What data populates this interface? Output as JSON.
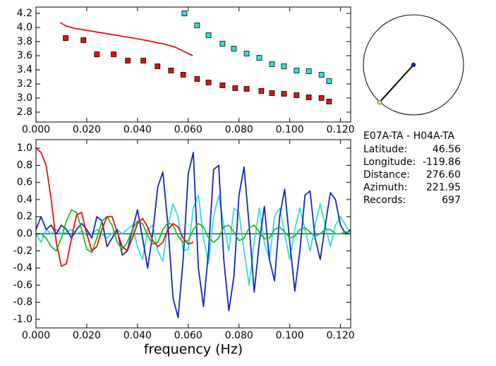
{
  "chart_data": [
    {
      "type": "scatter",
      "xlim": [
        0,
        0.124
      ],
      "ylim": [
        2.66,
        4.29
      ],
      "xticks": [
        {
          "value": 0,
          "label": "0.000"
        },
        {
          "value": 0.02,
          "label": "0.020"
        },
        {
          "value": 0.04,
          "label": "0.040"
        },
        {
          "value": 0.06,
          "label": "0.060"
        },
        {
          "value": 0.08,
          "label": "0.080"
        },
        {
          "value": 0.1,
          "label": "0.100"
        },
        {
          "value": 0.12,
          "label": "0.120"
        }
      ],
      "yticks": [
        2.8,
        {
          "value": 3.0,
          "label": "3.0"
        },
        3.2,
        3.4,
        3.6,
        3.8,
        {
          "value": 4.0,
          "label": "4.0"
        },
        4.2
      ],
      "series": [
        {
          "mode": "markers",
          "color": "#dd1111",
          "x": [
            0.0117,
            0.0187,
            0.024,
            0.0306,
            0.0362,
            0.0423,
            0.0479,
            0.0532,
            0.058,
            0.0635,
            0.068,
            0.0735,
            0.0785,
            0.083,
            0.0888,
            0.093,
            0.0977,
            0.1027,
            0.1075,
            0.1125,
            0.1155
          ],
          "values": [
            3.85,
            3.82,
            3.62,
            3.62,
            3.53,
            3.53,
            3.45,
            3.39,
            3.33,
            3.27,
            3.22,
            3.18,
            3.14,
            3.13,
            3.1,
            3.07,
            3.06,
            3.04,
            3.01,
            3.0,
            2.95
          ]
        },
        {
          "mode": "markers",
          "color": "#33dddd",
          "x": [
            0.0585,
            0.0635,
            0.068,
            0.0735,
            0.078,
            0.083,
            0.088,
            0.093,
            0.0977,
            0.1027,
            0.1075,
            0.1125,
            0.1155
          ],
          "values": [
            4.2,
            4.03,
            3.89,
            3.77,
            3.7,
            3.63,
            3.57,
            3.48,
            3.45,
            3.39,
            3.38,
            3.33,
            3.24
          ]
        },
        {
          "mode": "lines",
          "color": "#dd1111",
          "x": [
            0.0095,
            0.012,
            0.015,
            0.02,
            0.03,
            0.04,
            0.05,
            0.055,
            0.06,
            0.0618
          ],
          "values": [
            4.07,
            4.02,
            3.99,
            3.96,
            3.9,
            3.84,
            3.77,
            3.72,
            3.63,
            3.6
          ]
        }
      ]
    },
    {
      "type": "line",
      "x_label": "frequency (Hz)",
      "xlim": [
        0,
        0.124
      ],
      "ylim": [
        -1.1,
        1.1
      ],
      "xticks": [
        {
          "value": 0,
          "label": "0.000"
        },
        {
          "value": 0.02,
          "label": "0.020"
        },
        {
          "value": 0.04,
          "label": "0.040"
        },
        {
          "value": 0.06,
          "label": "0.060"
        },
        {
          "value": 0.08,
          "label": "0.080"
        },
        {
          "value": 0.1,
          "label": "0.100"
        },
        {
          "value": 0.12,
          "label": "0.120"
        }
      ],
      "yticks": [
        {
          "value": -1.0,
          "label": "-1.0"
        },
        -0.8,
        -0.6,
        -0.4,
        -0.2,
        {
          "value": 0.0,
          "label": "0.0"
        },
        0.2,
        0.4,
        0.6,
        0.8,
        {
          "value": 1.0,
          "label": "1.0"
        }
      ],
      "zero_line_color": "#006666",
      "x": [
        0,
        0.002,
        0.004,
        0.006,
        0.008,
        0.01,
        0.012,
        0.014,
        0.016,
        0.018,
        0.02,
        0.022,
        0.024,
        0.026,
        0.028,
        0.03,
        0.032,
        0.034,
        0.036,
        0.038,
        0.04,
        0.042,
        0.044,
        0.046,
        0.048,
        0.05,
        0.052,
        0.054,
        0.056,
        0.058,
        0.06,
        0.062,
        0.064,
        0.066,
        0.068,
        0.07,
        0.072,
        0.074,
        0.076,
        0.078,
        0.08,
        0.082,
        0.084,
        0.086,
        0.088,
        0.09,
        0.092,
        0.094,
        0.096,
        0.098,
        0.1,
        0.102,
        0.104,
        0.106,
        0.108,
        0.11,
        0.112,
        0.114,
        0.116,
        0.118,
        0.12,
        0.122,
        0.124
      ],
      "series": [
        {
          "color": "#33dddd",
          "values": [
            0.0,
            -0.1,
            0.05,
            0.0,
            0.05,
            0.0,
            0.02,
            0.05,
            0.0,
            0.03,
            -0.02,
            0.0,
            0.05,
            0.0,
            -0.05,
            0.0,
            0.05,
            0.0,
            0.05,
            0.1,
            -0.15,
            -0.3,
            0.05,
            0.1,
            -0.2,
            -0.32,
            0.1,
            0.35,
            0.2,
            -0.2,
            -0.18,
            0.3,
            0.45,
            -0.05,
            -0.35,
            0.2,
            0.45,
            0.1,
            -0.2,
            0.3,
            0.25,
            -0.2,
            -0.6,
            -0.1,
            0.3,
            -0.1,
            -0.3,
            0.2,
            0.3,
            0.0,
            -0.3,
            0.05,
            0.3,
            0.05,
            -0.2,
            0.1,
            0.35,
            0.1,
            -0.15,
            0.1,
            0.2,
            0.1,
            0.0
          ]
        },
        {
          "color": "#1428b4",
          "values": [
            0.05,
            0.2,
            0.05,
            0.1,
            0.0,
            0.1,
            0.05,
            -0.05,
            0.05,
            0.12,
            0.05,
            -0.05,
            0.2,
            0.15,
            -0.15,
            -0.05,
            0.05,
            -0.25,
            -0.2,
            0.05,
            0.28,
            -0.05,
            -0.4,
            0.0,
            0.55,
            0.72,
            0.1,
            -0.75,
            -0.98,
            -0.3,
            0.7,
            0.95,
            -0.4,
            -0.85,
            -0.2,
            0.75,
            0.8,
            -0.3,
            -0.9,
            -0.5,
            0.45,
            0.78,
            0.1,
            -0.68,
            -0.1,
            0.32,
            -0.3,
            -0.55,
            0.2,
            0.52,
            -0.1,
            -0.67,
            -0.2,
            0.45,
            0.5,
            -0.05,
            -0.3,
            0.1,
            0.48,
            0.4,
            0.1,
            0.0,
            0.05
          ]
        },
        {
          "color": "#22bb22",
          "values": [
            0.0,
            0.0,
            -0.05,
            -0.15,
            -0.2,
            -0.05,
            0.15,
            0.28,
            0.25,
            0.05,
            -0.18,
            -0.22,
            -0.05,
            0.15,
            0.2,
            0.1,
            -0.1,
            -0.18,
            -0.1,
            0.05,
            0.15,
            0.12,
            -0.02,
            -0.12,
            -0.1,
            0.05,
            0.13,
            0.1,
            -0.03,
            -0.1,
            -0.08,
            0.05,
            0.12,
            0.08,
            -0.05,
            -0.1,
            -0.05,
            0.08,
            0.1,
            0.02,
            -0.08,
            -0.05,
            0.07,
            0.1,
            0.02,
            -0.06,
            -0.05,
            0.05,
            0.08,
            0.02,
            -0.05,
            -0.03,
            0.05,
            0.07,
            0.02,
            -0.03,
            0.0,
            0.05,
            0.05,
            0.0,
            0.0,
            0.02,
            0.03
          ]
        },
        {
          "color": "#dd1111",
          "values": [
            1.0,
            0.95,
            0.8,
            0.4,
            -0.1,
            -0.38,
            -0.35,
            -0.05,
            0.22,
            0.25,
            0.0,
            -0.2,
            -0.15,
            0.05,
            0.2,
            0.2,
            0.02,
            -0.15,
            -0.2,
            -0.05,
            0.12,
            0.18,
            0.08,
            -0.08,
            -0.15,
            -0.1,
            0.05,
            0.12,
            0.08,
            -0.05,
            -0.12,
            -0.1,
            null,
            null,
            null,
            null,
            null,
            null,
            null,
            null,
            null,
            null,
            null,
            null,
            null,
            null,
            null,
            null,
            null,
            null,
            null,
            null,
            null,
            null,
            null,
            null,
            null,
            null,
            null,
            null,
            null,
            null,
            null
          ]
        }
      ]
    }
  ],
  "info": {
    "title": "E07A-TA - H04A-TA",
    "rows": [
      {
        "label": "Latitude:",
        "value": "46.56"
      },
      {
        "label": "Longitude:",
        "value": "-119.86"
      },
      {
        "label": "Distance:",
        "value": "276.60"
      },
      {
        "label": "Azimuth:",
        "value": "221.95"
      },
      {
        "label": "Records:",
        "value": "697"
      }
    ]
  }
}
